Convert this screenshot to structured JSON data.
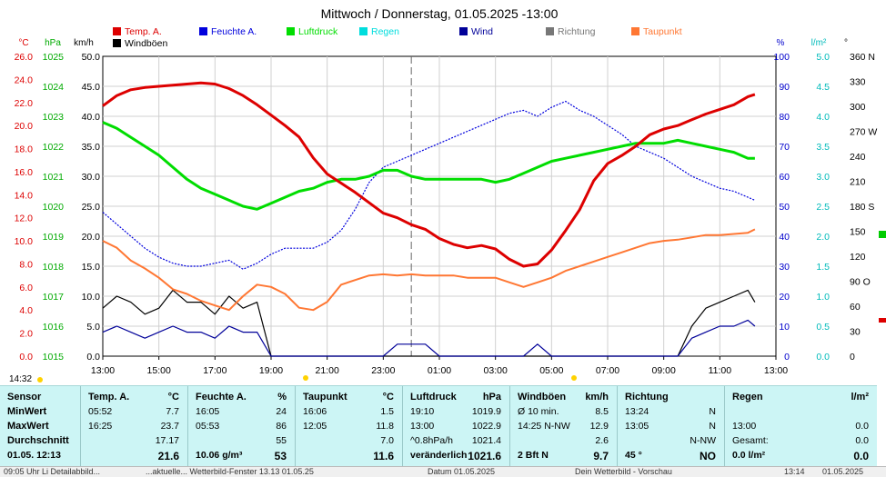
{
  "title": "Mittwoch / Donnerstag, 01.05.2025  -13:00",
  "legend": [
    {
      "label": "Temp. A.",
      "color": "#dd0000"
    },
    {
      "label": "Feuchte A.",
      "color": "#0000dd"
    },
    {
      "label": "Luftdruck",
      "color": "#00dd00"
    },
    {
      "label": "Regen",
      "color": "#00dddd"
    },
    {
      "label": "Wind",
      "color": "#000099"
    },
    {
      "label": "Richtung",
      "color": "#777777"
    },
    {
      "label": "Taupunkt",
      "color": "#ff7733"
    },
    {
      "label": "Windböen",
      "color": "#000000"
    }
  ],
  "units": {
    "temp": "°C",
    "pressure": "hPa",
    "wind": "km/h",
    "humidity": "%",
    "rain": "l/m²",
    "dir": "°"
  },
  "corner_time": "14:32",
  "chart_data": {
    "type": "line",
    "x_ticks": [
      "13:00",
      "15:00",
      "17:00",
      "19:00",
      "21:00",
      "23:00",
      "01:00",
      "03:00",
      "05:00",
      "07:00",
      "09:00",
      "11:00",
      "13:00"
    ],
    "axes": {
      "temp": {
        "min": 0,
        "max": 26,
        "ticks": [
          "0.0",
          "2.0",
          "4.0",
          "6.0",
          "8.0",
          "10.0",
          "12.0",
          "14.0",
          "16.0",
          "18.0",
          "20.0",
          "22.0",
          "24.0",
          "26.0"
        ],
        "color": "#dd0000"
      },
      "pressure": {
        "min": 1015,
        "max": 1025,
        "ticks": [
          "1015",
          "1016",
          "1017",
          "1018",
          "1019",
          "1020",
          "1021",
          "1022",
          "1023",
          "1024",
          "1025"
        ],
        "color": "#00aa00"
      },
      "wind": {
        "min": 0,
        "max": 50,
        "ticks": [
          "0.0",
          "5.0",
          "10.0",
          "15.0",
          "20.0",
          "25.0",
          "30.0",
          "35.0",
          "40.0",
          "45.0",
          "50.0"
        ],
        "color": "#000000"
      },
      "humidity": {
        "min": 0,
        "max": 100,
        "ticks": [
          "0",
          "10",
          "20",
          "30",
          "40",
          "50",
          "60",
          "70",
          "80",
          "90",
          "100"
        ],
        "color": "#0000cc"
      },
      "rain": {
        "min": 0,
        "max": 5,
        "ticks": [
          "0.0",
          "0.5",
          "1.0",
          "1.5",
          "2.0",
          "2.5",
          "3.0",
          "3.5",
          "4.0",
          "4.5",
          "5.0"
        ],
        "color": "#00bbbb"
      },
      "direction": {
        "min": 0,
        "max": 360,
        "ticks": [
          "0",
          "30",
          "60",
          "90 O",
          "120",
          "150",
          "180 S",
          "210",
          "240",
          "270 W",
          "300",
          "330",
          "360 N"
        ],
        "color": "#000000"
      }
    },
    "series": [
      {
        "name": "Temp. A.",
        "color": "#dd0000",
        "axis": "temp",
        "x": [
          0,
          0.5,
          1,
          1.5,
          2,
          2.5,
          3,
          3.5,
          4,
          4.5,
          5,
          5.5,
          6,
          6.5,
          7,
          7.5,
          8,
          8.5,
          9,
          9.5,
          10,
          10.5,
          11,
          11.5,
          12,
          12.5,
          13,
          13.5,
          14,
          14.5,
          15,
          15.5,
          16,
          16.5,
          17,
          17.5,
          18,
          18.5,
          19,
          19.5,
          20,
          20.5,
          21,
          21.5,
          22,
          22.5,
          23,
          23.25
        ],
        "y": [
          21.7,
          22.6,
          23.1,
          23.3,
          23.4,
          23.5,
          23.6,
          23.7,
          23.6,
          23.2,
          22.6,
          21.8,
          20.9,
          20.0,
          19.0,
          17.2,
          15.8,
          15.0,
          14.2,
          13.3,
          12.4,
          12.0,
          11.4,
          11.0,
          10.2,
          9.7,
          9.4,
          9.6,
          9.3,
          8.4,
          7.8,
          8.0,
          9.2,
          10.9,
          12.7,
          15.2,
          16.7,
          17.4,
          18.2,
          19.2,
          19.7,
          20.0,
          20.5,
          21.0,
          21.4,
          21.8,
          22.5,
          22.7
        ]
      },
      {
        "name": "Taupunkt",
        "color": "#ff7733",
        "axis": "temp",
        "x": [
          0,
          0.5,
          1,
          1.5,
          2,
          2.5,
          3,
          3.5,
          4,
          4.5,
          5,
          5.5,
          6,
          6.5,
          7,
          7.5,
          8,
          8.5,
          9,
          9.5,
          10,
          10.5,
          11,
          11.5,
          12,
          12.5,
          13,
          13.5,
          14,
          14.5,
          15,
          15.5,
          16,
          16.5,
          17,
          17.5,
          18,
          18.5,
          19,
          19.5,
          20,
          20.5,
          21,
          21.5,
          22,
          22.5,
          23,
          23.25
        ],
        "y": [
          10.0,
          9.4,
          8.3,
          7.6,
          6.8,
          5.8,
          5.4,
          4.8,
          4.4,
          4.0,
          5.2,
          6.2,
          6.0,
          5.4,
          4.2,
          4.0,
          4.7,
          6.2,
          6.6,
          7.0,
          7.1,
          7.0,
          7.1,
          7.0,
          7.0,
          7.0,
          6.8,
          6.8,
          6.8,
          6.4,
          6.0,
          6.4,
          6.8,
          7.4,
          7.8,
          8.2,
          8.6,
          9.0,
          9.4,
          9.8,
          10.0,
          10.1,
          10.3,
          10.5,
          10.5,
          10.6,
          10.7,
          11.0
        ]
      },
      {
        "name": "Luftdruck",
        "color": "#00dd00",
        "axis": "pressure",
        "x": [
          0,
          0.5,
          1,
          1.5,
          2,
          2.5,
          3,
          3.5,
          4,
          4.5,
          5,
          5.5,
          6,
          6.5,
          7,
          7.5,
          8,
          8.5,
          9,
          9.5,
          10,
          10.5,
          11,
          11.5,
          12,
          12.5,
          13,
          13.5,
          14,
          14.5,
          15,
          15.5,
          16,
          16.5,
          17,
          17.5,
          18,
          18.5,
          19,
          19.5,
          20,
          20.5,
          21,
          21.5,
          22,
          22.5,
          23,
          23.25
        ],
        "y": [
          1022.8,
          1022.6,
          1022.3,
          1022.0,
          1021.7,
          1021.3,
          1020.9,
          1020.6,
          1020.4,
          1020.2,
          1020.0,
          1019.9,
          1020.1,
          1020.3,
          1020.5,
          1020.6,
          1020.8,
          1020.9,
          1020.9,
          1021.0,
          1021.2,
          1021.2,
          1021.0,
          1020.9,
          1020.9,
          1020.9,
          1020.9,
          1020.9,
          1020.8,
          1020.9,
          1021.1,
          1021.3,
          1021.5,
          1021.6,
          1021.7,
          1021.8,
          1021.9,
          1022.0,
          1022.1,
          1022.1,
          1022.1,
          1022.2,
          1022.1,
          1022.0,
          1021.9,
          1021.8,
          1021.6,
          1021.6
        ]
      },
      {
        "name": "Feuchte A.",
        "color": "#0000dd",
        "axis": "humidity",
        "x": [
          0,
          0.5,
          1,
          1.5,
          2,
          2.5,
          3,
          3.5,
          4,
          4.5,
          5,
          5.5,
          6,
          6.5,
          7,
          7.5,
          8,
          8.5,
          9,
          9.5,
          10,
          10.5,
          11,
          11.5,
          12,
          12.5,
          13,
          13.5,
          14,
          14.5,
          15,
          15.5,
          16,
          16.5,
          17,
          17.5,
          18,
          18.5,
          19,
          19.5,
          20,
          20.5,
          21,
          21.5,
          22,
          22.5,
          23,
          23.25
        ],
        "y": [
          48,
          44,
          40,
          36,
          33,
          31,
          30,
          30,
          31,
          32,
          29,
          31,
          34,
          36,
          36,
          36,
          38,
          42,
          49,
          58,
          63,
          65,
          67,
          69,
          71,
          73,
          75,
          77,
          79,
          81,
          82,
          80,
          83,
          85,
          82,
          80,
          77,
          74,
          70,
          68,
          66,
          63,
          60,
          58,
          56,
          55,
          53,
          52
        ]
      },
      {
        "name": "Windböen",
        "color": "#000000",
        "axis": "wind",
        "x": [
          0,
          0.5,
          1,
          1.5,
          2,
          2.5,
          3,
          3.5,
          4,
          4.5,
          5,
          5.5,
          6,
          6.5,
          7,
          7.5,
          8,
          8.5,
          9,
          9.5,
          10,
          10.5,
          11,
          11.5,
          12,
          12.5,
          13,
          13.5,
          14,
          14.5,
          15,
          15.5,
          16,
          16.5,
          17,
          17.5,
          18,
          18.5,
          19,
          19.5,
          20,
          20.5,
          21,
          21.5,
          22,
          22.5,
          23,
          23.25
        ],
        "y": [
          8,
          10,
          9,
          7,
          8,
          11,
          9,
          9,
          7,
          10,
          8,
          9,
          0,
          0,
          0,
          0,
          0,
          0,
          0,
          0,
          0,
          0,
          0,
          0,
          0,
          0,
          0,
          0,
          0,
          0,
          0,
          0,
          0,
          0,
          0,
          0,
          0,
          0,
          0,
          0,
          0,
          0,
          5,
          8,
          9,
          10,
          11,
          9
        ]
      },
      {
        "name": "Wind",
        "color": "#000099",
        "axis": "wind",
        "x": [
          0,
          0.5,
          1,
          1.5,
          2,
          2.5,
          3,
          3.5,
          4,
          4.5,
          5,
          5.5,
          6,
          6.5,
          7,
          7.5,
          8,
          8.5,
          9,
          9.5,
          10,
          10.5,
          11,
          11.5,
          12,
          12.5,
          13,
          13.5,
          14,
          14.5,
          15,
          15.5,
          16,
          16.5,
          17,
          17.5,
          18,
          18.5,
          19,
          19.5,
          20,
          20.5,
          21,
          21.5,
          22,
          22.5,
          23,
          23.25
        ],
        "y": [
          4,
          5,
          4,
          3,
          4,
          5,
          4,
          4,
          3,
          5,
          4,
          4,
          0,
          0,
          0,
          0,
          0,
          0,
          0,
          0,
          0,
          2,
          2,
          2,
          0,
          0,
          0,
          0,
          0,
          0,
          0,
          2,
          0,
          0,
          0,
          0,
          0,
          0,
          0,
          0,
          0,
          0,
          3,
          4,
          5,
          5,
          6,
          5
        ]
      }
    ]
  },
  "table": [
    {
      "head": "Sensor",
      "unit": "",
      "rows": [
        [
          "MinWert",
          ""
        ],
        [
          "MaxWert",
          ""
        ],
        [
          "Durchschnitt",
          ""
        ]
      ],
      "last": [
        "01.05. 12:13",
        ""
      ]
    },
    {
      "head": "Temp. A.",
      "unit": "°C",
      "rows": [
        [
          "05:52",
          "7.7"
        ],
        [
          "16:25",
          "23.7"
        ],
        [
          "",
          "17.17"
        ]
      ],
      "last": [
        "",
        "21.6"
      ]
    },
    {
      "head": "Feuchte A.",
      "unit": "%",
      "rows": [
        [
          "16:05",
          "24"
        ],
        [
          "05:53",
          "86"
        ],
        [
          "",
          "55"
        ]
      ],
      "last": [
        "10.06 g/m³",
        "53"
      ]
    },
    {
      "head": "Taupunkt",
      "unit": "°C",
      "rows": [
        [
          "16:06",
          "1.5"
        ],
        [
          "12:05",
          "11.8"
        ],
        [
          "",
          "7.0"
        ]
      ],
      "last": [
        "",
        "11.6"
      ]
    },
    {
      "head": "Luftdruck",
      "unit": "hPa",
      "rows": [
        [
          "19:10",
          "1019.9"
        ],
        [
          "13:00",
          "1022.9"
        ],
        [
          "^0.8hPa/h",
          "1021.4"
        ]
      ],
      "last": [
        "veränderlich",
        "1021.6"
      ]
    },
    {
      "head": "Windböen",
      "unit": "km/h",
      "rows": [
        [
          "Ø 10 min.",
          "8.5"
        ],
        [
          "14:25  N-NW",
          "12.9"
        ],
        [
          "",
          "2.6"
        ]
      ],
      "last": [
        "2 Bft N",
        "9.7"
      ]
    },
    {
      "head": "Richtung",
      "unit": "",
      "rows": [
        [
          "13:24",
          "N"
        ],
        [
          "13:05",
          "N"
        ],
        [
          "",
          "N-NW"
        ]
      ],
      "last": [
        "45 °",
        "NO"
      ]
    },
    {
      "head": "Regen",
      "unit": "l/m²",
      "rows": [
        [
          "",
          ""
        ],
        [
          "13:00",
          "0.0"
        ],
        [
          "Gesamt:",
          "0.0"
        ]
      ],
      "last": [
        "0.0 l/m²",
        "0.0"
      ]
    }
  ],
  "statusbar": [
    "09:05 Uhr  Li Detailabbild...",
    "...aktuelle...  Wetterbild-Fenster 13.13  01.05.25",
    "Datum 01.05.2025",
    "Dein Wetterbild - Vorschau",
    "13:14",
    "01.05.2025"
  ]
}
